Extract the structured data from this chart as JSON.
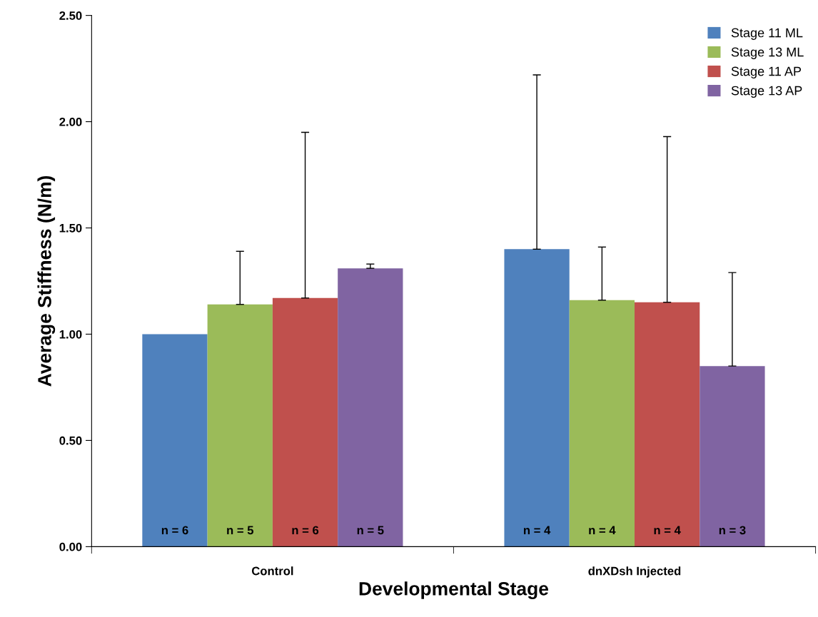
{
  "chart_data": {
    "type": "bar",
    "xlabel": "Developmental Stage",
    "ylabel": "Average Stiffness (N/m)",
    "categories": [
      "Control",
      "dnXDsh Injected"
    ],
    "series": [
      {
        "name": "Stage 11 ML",
        "color": "#4f81bd",
        "values": [
          1.0,
          1.4
        ],
        "errors": [
          null,
          [
            1.4,
            2.22
          ]
        ]
      },
      {
        "name": "Stage 13 ML",
        "color": "#9bbb59",
        "values": [
          1.14,
          1.16
        ],
        "errors": [
          [
            1.14,
            1.39
          ],
          [
            1.16,
            1.41
          ]
        ]
      },
      {
        "name": "Stage 11 AP",
        "color": "#c0504d",
        "values": [
          1.17,
          1.15
        ],
        "errors": [
          [
            1.17,
            1.95
          ],
          [
            1.15,
            1.93
          ]
        ]
      },
      {
        "name": "Stage 13 AP",
        "color": "#8064a2",
        "values": [
          1.31,
          0.85
        ],
        "errors": [
          [
            1.31,
            1.33
          ],
          [
            0.85,
            1.29
          ]
        ]
      }
    ],
    "annotations": [
      "n = 6",
      "n = 5",
      "n = 6",
      "n = 5",
      "n = 4",
      "n = 4",
      "n = 4",
      "n = 3"
    ],
    "ylim": [
      0,
      2.5
    ],
    "yticks": [
      {
        "value": 0,
        "label": "0.00"
      },
      {
        "value": 0.5,
        "label": "0.50"
      },
      {
        "value": 1.0,
        "label": "1.00"
      },
      {
        "value": 1.5,
        "label": "1.50"
      },
      {
        "value": 2.0,
        "label": "2.00"
      },
      {
        "value": 2.5,
        "label": "2.50"
      }
    ],
    "legend": "top right",
    "grid": false
  }
}
